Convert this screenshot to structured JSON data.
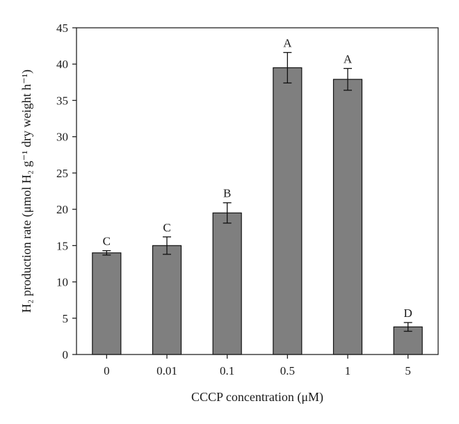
{
  "chart_data": {
    "type": "bar",
    "categories": [
      "0",
      "0.01",
      "0.1",
      "0.5",
      "1",
      "5"
    ],
    "values": [
      14.0,
      15.0,
      19.5,
      39.5,
      37.9,
      3.8
    ],
    "error": [
      0.3,
      1.2,
      1.4,
      2.1,
      1.5,
      0.6
    ],
    "significance": [
      "C",
      "C",
      "B",
      "A",
      "A",
      "D"
    ],
    "xlabel": "CCCP concentration (μM)",
    "ylabel": "H₂ production rate (μmol H₂ g⁻¹ dry weight h⁻¹)",
    "ylim": [
      0,
      45
    ],
    "yticks": [
      "0",
      "5",
      "10",
      "15",
      "20",
      "25",
      "30",
      "35",
      "40",
      "45"
    ],
    "bar_color": "#7f7f7f",
    "grid": false,
    "legend": "none"
  }
}
